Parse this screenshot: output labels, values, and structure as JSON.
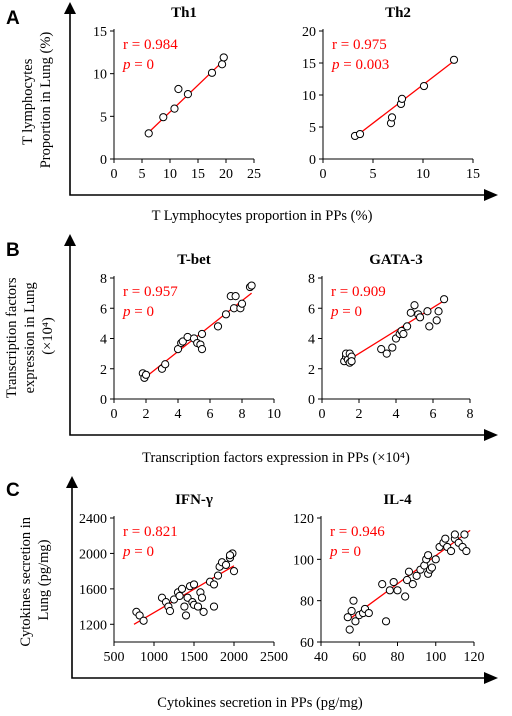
{
  "panels": [
    {
      "letter": "A",
      "xlabel": "T Lymphocytes proportion in PPs (%)",
      "ylabel_lines": [
        "T lymphocytes",
        "Proportion in Lung (%)"
      ],
      "ylabel_sup": ""
    },
    {
      "letter": "B",
      "xlabel": "Transcription factors expression in PPs (×10⁴)",
      "ylabel_lines": [
        "Transcription factors",
        "expression in Lung",
        "(×10⁴)"
      ],
      "ylabel_sup": ""
    },
    {
      "letter": "C",
      "xlabel": "Cytokines secretion in PPs (pg/mg)",
      "ylabel_lines": [
        "Cytokines secretion in",
        "Lung (pg/mg)"
      ],
      "ylabel_sup": ""
    }
  ],
  "chart_data": [
    {
      "type": "scatter",
      "panel": "A",
      "title": "Th1",
      "r_text": "r = 0.984",
      "p_label": "p",
      "p_value": " = 0",
      "xlim": [
        0,
        25
      ],
      "ylim": [
        0,
        15
      ],
      "xticks": [
        0,
        5,
        10,
        15,
        20,
        25
      ],
      "yticks": [
        0,
        5,
        10,
        15
      ],
      "x": [
        6.2,
        8.8,
        10.8,
        11.5,
        13.2,
        17.5,
        19.3,
        19.6
      ],
      "y": [
        3.0,
        4.9,
        5.9,
        8.2,
        7.6,
        10.1,
        11.1,
        11.9
      ],
      "fit": {
        "x": [
          6,
          20
        ],
        "y": [
          3.0,
          11.8
        ]
      }
    },
    {
      "type": "scatter",
      "panel": "A",
      "title": "Th2",
      "r_text": "r = 0.975",
      "p_label": "p",
      "p_value": " = 0.003",
      "xlim": [
        0,
        15
      ],
      "ylim": [
        0,
        20
      ],
      "xticks": [
        0,
        5,
        10,
        15
      ],
      "yticks": [
        0,
        5,
        10,
        15,
        20
      ],
      "x": [
        3.2,
        3.7,
        6.8,
        6.9,
        7.8,
        7.9,
        10.1,
        13.1
      ],
      "y": [
        3.6,
        3.9,
        5.6,
        6.5,
        8.6,
        9.4,
        11.4,
        15.5
      ],
      "fit": {
        "x": [
          3,
          13
        ],
        "y": [
          3.2,
          15.2
        ]
      }
    },
    {
      "type": "scatter",
      "panel": "B",
      "title": "T-bet",
      "r_text": "r = 0.957",
      "p_label": "p",
      "p_value": " = 0",
      "xlim": [
        0,
        10
      ],
      "ylim": [
        0,
        8
      ],
      "xticks": [
        0,
        2,
        4,
        6,
        8,
        10
      ],
      "yticks": [
        0,
        2,
        4,
        6,
        8
      ],
      "x": [
        1.8,
        1.9,
        2.0,
        3.0,
        3.2,
        4.0,
        4.2,
        4.3,
        4.6,
        5.0,
        5.2,
        5.4,
        5.5,
        5.5,
        6.5,
        7.0,
        7.3,
        7.5,
        7.6,
        7.9,
        8.0,
        8.5,
        8.6
      ],
      "y": [
        1.7,
        1.4,
        1.6,
        2.0,
        2.3,
        3.3,
        3.7,
        3.8,
        4.1,
        4.0,
        3.7,
        3.6,
        4.3,
        3.3,
        4.8,
        5.6,
        6.8,
        6.0,
        6.8,
        6.0,
        6.3,
        7.4,
        7.5
      ],
      "fit": {
        "x": [
          1.8,
          8.6
        ],
        "y": [
          1.3,
          7.0
        ]
      }
    },
    {
      "type": "scatter",
      "panel": "B",
      "title": "GATA-3",
      "r_text": "r = 0.909",
      "p_label": "p",
      "p_value": " = 0",
      "xlim": [
        0,
        8
      ],
      "ylim": [
        0,
        8
      ],
      "xticks": [
        0,
        2,
        4,
        6,
        8
      ],
      "yticks": [
        0,
        2,
        4,
        6,
        8
      ],
      "x": [
        1.2,
        1.3,
        1.3,
        1.4,
        1.5,
        1.5,
        1.6,
        1.6,
        3.2,
        3.5,
        3.8,
        4.0,
        4.2,
        4.3,
        4.4,
        4.6,
        4.8,
        5.0,
        5.2,
        5.3,
        5.7,
        5.8,
        6.2,
        6.3,
        6.6
      ],
      "y": [
        2.5,
        2.8,
        3.0,
        2.6,
        2.4,
        3.0,
        2.8,
        2.5,
        3.3,
        3.0,
        3.4,
        4.0,
        4.3,
        4.5,
        4.3,
        4.8,
        5.7,
        6.2,
        5.6,
        5.4,
        5.8,
        4.8,
        5.2,
        5.8,
        6.6
      ],
      "fit": {
        "x": [
          1.2,
          6.6
        ],
        "y": [
          2.4,
          6.5
        ]
      }
    },
    {
      "type": "scatter",
      "panel": "C",
      "title": "IFN-γ",
      "r_text": "r = 0.821",
      "p_label": "p",
      "p_value": " = 0",
      "xlim": [
        500,
        2500
      ],
      "ylim": [
        1000,
        2400
      ],
      "xticks": [
        500,
        1000,
        1500,
        2000,
        2500
      ],
      "xticklabels": [
        "500",
        "1000",
        "1500",
        "2000",
        "2500"
      ],
      "yticks": [
        1200,
        1600,
        2000,
        2400
      ],
      "x": [
        780,
        820,
        870,
        1100,
        1150,
        1180,
        1200,
        1250,
        1300,
        1320,
        1350,
        1380,
        1400,
        1420,
        1450,
        1480,
        1500,
        1500,
        1550,
        1580,
        1600,
        1620,
        1700,
        1750,
        1800,
        1820,
        1850,
        1900,
        1950,
        1980,
        2000,
        1750,
        1950
      ],
      "y": [
        1340,
        1300,
        1240,
        1500,
        1450,
        1400,
        1350,
        1480,
        1560,
        1520,
        1600,
        1400,
        1300,
        1500,
        1630,
        1450,
        1650,
        1420,
        1400,
        1560,
        1500,
        1340,
        1680,
        1650,
        1750,
        1850,
        1900,
        1870,
        1950,
        2000,
        1800,
        1400,
        1980
      ],
      "fit": {
        "x": [
          750,
          2000
        ],
        "y": [
          1200,
          1860
        ]
      }
    },
    {
      "type": "scatter",
      "panel": "C",
      "title": "IL-4",
      "r_text": "r = 0.946",
      "p_label": "p",
      "p_value": " = 0",
      "xlim": [
        40,
        120
      ],
      "ylim": [
        60,
        120
      ],
      "xticks": [
        40,
        60,
        80,
        100,
        120
      ],
      "yticks": [
        60,
        80,
        100,
        120
      ],
      "x": [
        54,
        55,
        56,
        57,
        58,
        60,
        62,
        63,
        65,
        72,
        74,
        76,
        78,
        80,
        84,
        85,
        86,
        88,
        90,
        92,
        94,
        95,
        96,
        96,
        97,
        98,
        100,
        102,
        104,
        105,
        106,
        108,
        110,
        110,
        112,
        114,
        115,
        116
      ],
      "y": [
        72,
        66,
        75,
        80,
        70,
        73,
        74,
        76,
        74,
        88,
        70,
        85,
        89,
        85,
        82,
        90,
        94,
        88,
        92,
        95,
        97,
        100,
        102,
        93,
        95,
        96,
        100,
        106,
        108,
        110,
        106,
        104,
        110,
        112,
        108,
        106,
        112,
        104
      ],
      "fit": {
        "x": [
          54,
          118
        ],
        "y": [
          70.5,
          114
        ]
      }
    }
  ]
}
